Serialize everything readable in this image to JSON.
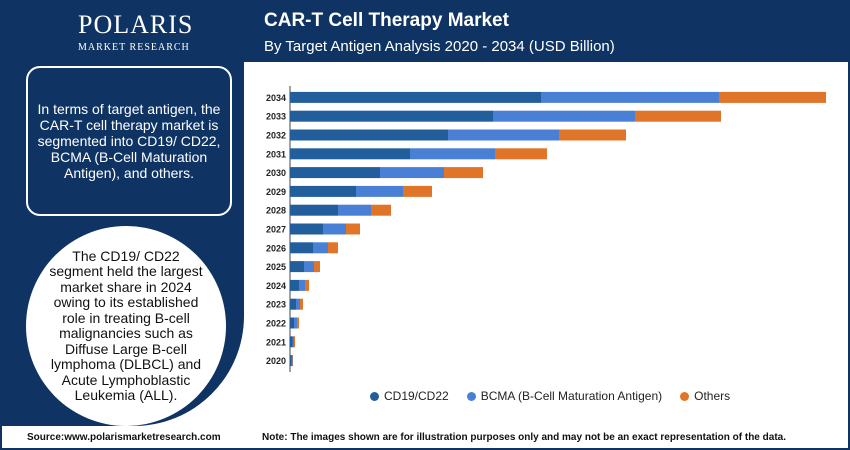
{
  "brand": {
    "name": "POLARIS",
    "sub": "MARKET RESEARCH"
  },
  "header": {
    "title": "CAR-T Cell Therapy Market",
    "subtitle": "By Target Antigen Analysis 2020 - 2034 (USD Billion)"
  },
  "sidebar": {
    "box_text": "In terms of target antigen, the CAR-T cell therapy market is segmented into CD19/ CD22, BCMA (B-Cell Maturation Antigen), and others.",
    "circle_text": "The CD19/ CD22 segment held the largest market share in 2024 owing to its established role in treating B-cell malignancies such as Diffuse Large B-cell lymphoma (DLBCL) and Acute Lymphoblastic Leukemia (ALL)."
  },
  "footer": {
    "source": "Source:www.polarismarketresearch.com",
    "note": "Note: The images shown are for illustration purposes only and may not be an exact representation of the data."
  },
  "colors": {
    "CD19/CD22": "#235e9c",
    "BCMA (B-Cell Maturation Antigen)": "#4a7fd6",
    "Others": "#e07428",
    "brand": "#0f3464"
  },
  "chart_data": {
    "type": "bar",
    "orientation": "horizontal",
    "stacked": true,
    "categories": [
      "2034",
      "2033",
      "2032",
      "2031",
      "2030",
      "2029",
      "2028",
      "2027",
      "2026",
      "2025",
      "2024",
      "2023",
      "2022",
      "2021",
      "2020"
    ],
    "series": [
      {
        "name": "CD19/CD22",
        "values": [
          251,
          203,
          158,
          120,
          90,
          66,
          48,
          33,
          23,
          14,
          9,
          6,
          4,
          2.5,
          1.5
        ]
      },
      {
        "name": "BCMA (B-Cell Maturation Antigen)",
        "values": [
          178,
          142,
          111,
          85,
          64,
          47,
          33,
          23,
          15,
          10,
          6,
          4,
          3,
          1.5,
          1
        ]
      },
      {
        "name": "Others",
        "values": [
          107,
          86,
          67,
          52,
          39,
          29,
          20,
          14,
          10,
          6,
          4,
          3,
          2,
          1,
          0.5
        ]
      }
    ],
    "xlim": [
      0,
      540
    ],
    "grid": false,
    "legend": "bottom"
  }
}
